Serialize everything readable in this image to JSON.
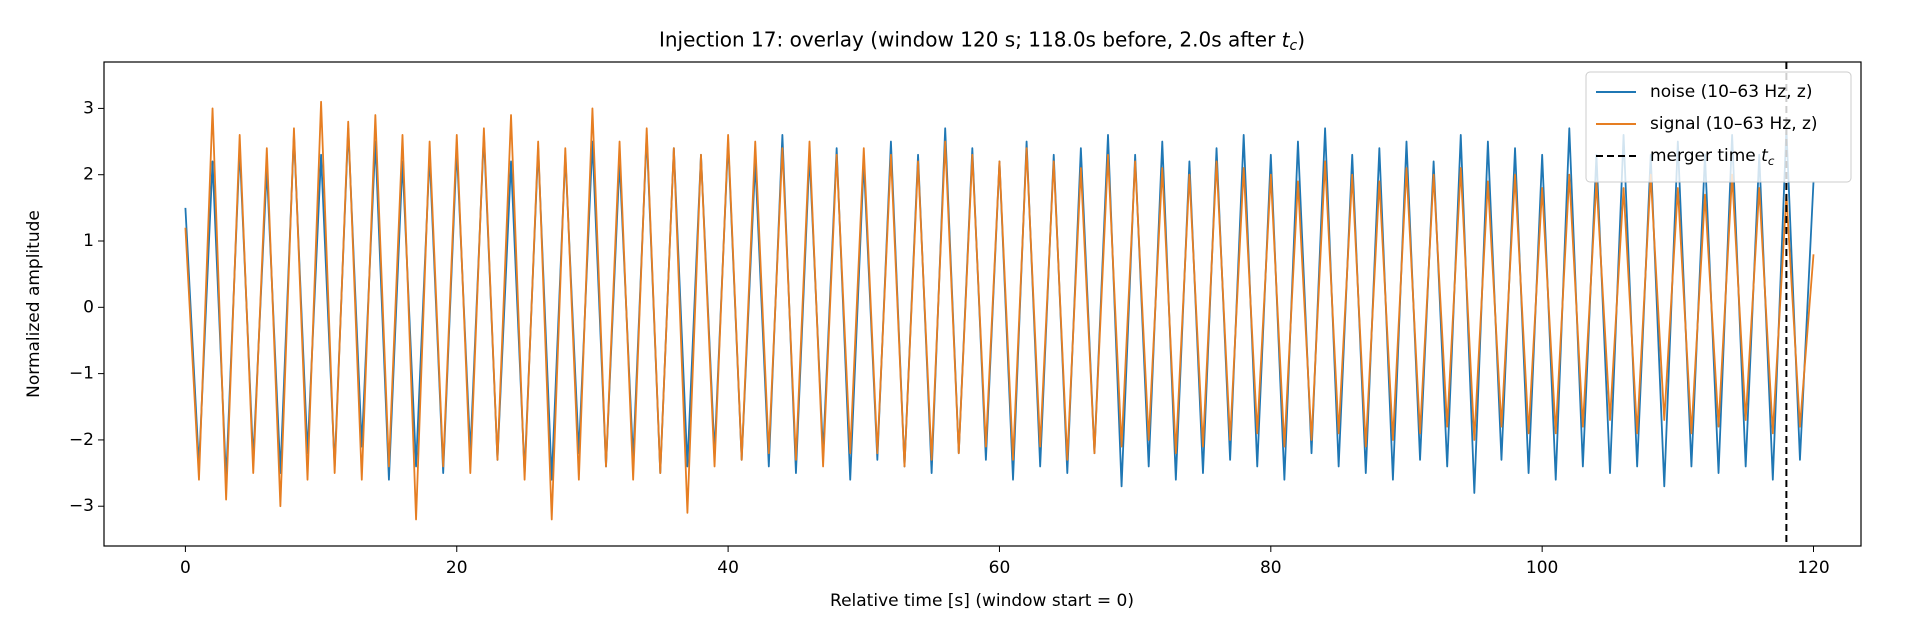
{
  "chart_data": {
    "type": "line",
    "title": "Injection 17: overlay (window 120 s; 118.0s before, 2.0s after t_c)",
    "xlabel": "Relative time [s] (window start = 0)",
    "ylabel": "Normalized amplitude",
    "x": [
      0,
      1,
      2,
      3,
      4,
      5,
      6,
      7,
      8,
      9,
      10,
      11,
      12,
      13,
      14,
      15,
      16,
      17,
      18,
      19,
      20,
      21,
      22,
      23,
      24,
      25,
      26,
      27,
      28,
      29,
      30,
      31,
      32,
      33,
      34,
      35,
      36,
      37,
      38,
      39,
      40,
      41,
      42,
      43,
      44,
      45,
      46,
      47,
      48,
      49,
      50,
      51,
      52,
      53,
      54,
      55,
      56,
      57,
      58,
      59,
      60,
      61,
      62,
      63,
      64,
      65,
      66,
      67,
      68,
      69,
      70,
      71,
      72,
      73,
      74,
      75,
      76,
      77,
      78,
      79,
      80,
      81,
      82,
      83,
      84,
      85,
      86,
      87,
      88,
      89,
      90,
      91,
      92,
      93,
      94,
      95,
      96,
      97,
      98,
      99,
      100,
      101,
      102,
      103,
      104,
      105,
      106,
      107,
      108,
      109,
      110,
      111,
      112,
      113,
      114,
      115,
      116,
      117,
      118,
      119,
      120
    ],
    "series": [
      {
        "name": "noise (10–63 Hz, z)",
        "color": "#1f77b4",
        "values": [
          1.5,
          -2.4,
          2.2,
          -2.6,
          2.4,
          -2.3,
          2.1,
          -2.5,
          2.6,
          -2.2,
          2.3,
          -2.4,
          2.7,
          -2.1,
          2.5,
          -2.6,
          2.2,
          -2.4,
          2.3,
          -2.5,
          2.4,
          -2.2,
          2.6,
          -2.3,
          2.2,
          -2.5,
          2.4,
          -2.6,
          2.3,
          -2.2,
          2.5,
          -2.4,
          2.2,
          -2.3,
          2.6,
          -2.5,
          2.4,
          -2.4,
          2.3,
          -2.2,
          2.5,
          -2.3,
          2.2,
          -2.4,
          2.6,
          -2.5,
          2.3,
          -2.2,
          2.4,
          -2.6,
          2.2,
          -2.3,
          2.5,
          -2.4,
          2.3,
          -2.5,
          2.7,
          -2.2,
          2.4,
          -2.3,
          2.2,
          -2.6,
          2.5,
          -2.4,
          2.3,
          -2.5,
          2.4,
          -2.2,
          2.6,
          -2.7,
          2.3,
          -2.4,
          2.5,
          -2.6,
          2.2,
          -2.5,
          2.4,
          -2.3,
          2.6,
          -2.4,
          2.3,
          -2.6,
          2.5,
          -2.2,
          2.7,
          -2.4,
          2.3,
          -2.5,
          2.4,
          -2.6,
          2.5,
          -2.3,
          2.2,
          -2.4,
          2.6,
          -2.8,
          2.5,
          -2.3,
          2.4,
          -2.5,
          2.3,
          -2.6,
          2.7,
          -2.4,
          2.3,
          -2.5,
          2.6,
          -2.4,
          2.3,
          -2.7,
          2.5,
          -2.4,
          2.3,
          -2.5,
          2.6,
          -2.4,
          2.3,
          -2.6,
          2.7,
          -2.3,
          1.9
        ]
      },
      {
        "name": "signal (10–63 Hz, z)",
        "color": "#e67e22",
        "values": [
          1.2,
          -2.6,
          3.0,
          -2.9,
          2.6,
          -2.5,
          2.4,
          -3.0,
          2.7,
          -2.6,
          3.1,
          -2.5,
          2.8,
          -2.6,
          2.9,
          -2.4,
          2.6,
          -3.2,
          2.5,
          -2.4,
          2.6,
          -2.5,
          2.7,
          -2.3,
          2.9,
          -2.6,
          2.5,
          -3.2,
          2.4,
          -2.6,
          3.0,
          -2.4,
          2.5,
          -2.6,
          2.7,
          -2.5,
          2.4,
          -3.1,
          2.3,
          -2.4,
          2.6,
          -2.3,
          2.5,
          -2.2,
          2.4,
          -2.3,
          2.5,
          -2.4,
          2.3,
          -2.2,
          2.4,
          -2.2,
          2.3,
          -2.4,
          2.2,
          -2.3,
          2.5,
          -2.2,
          2.3,
          -2.1,
          2.2,
          -2.3,
          2.4,
          -2.1,
          2.2,
          -2.3,
          2.1,
          -2.2,
          2.3,
          -2.1,
          2.2,
          -2.0,
          2.1,
          -2.2,
          2.0,
          -2.1,
          2.2,
          -2.0,
          2.1,
          -1.9,
          2.0,
          -2.1,
          1.9,
          -2.0,
          2.2,
          -1.9,
          2.0,
          -2.1,
          1.9,
          -2.0,
          2.1,
          -1.9,
          2.0,
          -1.8,
          2.1,
          -2.0,
          1.9,
          -1.8,
          2.0,
          -1.9,
          1.8,
          -1.9,
          2.0,
          -1.8,
          1.9,
          -1.7,
          1.8,
          -1.9,
          2.0,
          -1.7,
          1.8,
          -1.9,
          1.7,
          -1.8,
          2.0,
          -1.7,
          1.8,
          -1.9,
          1.7,
          -1.8,
          0.8
        ]
      }
    ],
    "vline": {
      "x": 118,
      "name": "merger time t_c",
      "color": "#000000"
    },
    "xlim": [
      -6,
      123.5
    ],
    "ylim": [
      -3.6,
      3.7
    ],
    "xticks": [
      0,
      20,
      40,
      60,
      80,
      100,
      120
    ],
    "yticks": [
      {
        "value": -3,
        "label": "−3"
      },
      {
        "value": -2,
        "label": "−2"
      },
      {
        "value": -1,
        "label": "−1"
      },
      0,
      1,
      2,
      3
    ],
    "legend": "upper right",
    "grid": false
  }
}
